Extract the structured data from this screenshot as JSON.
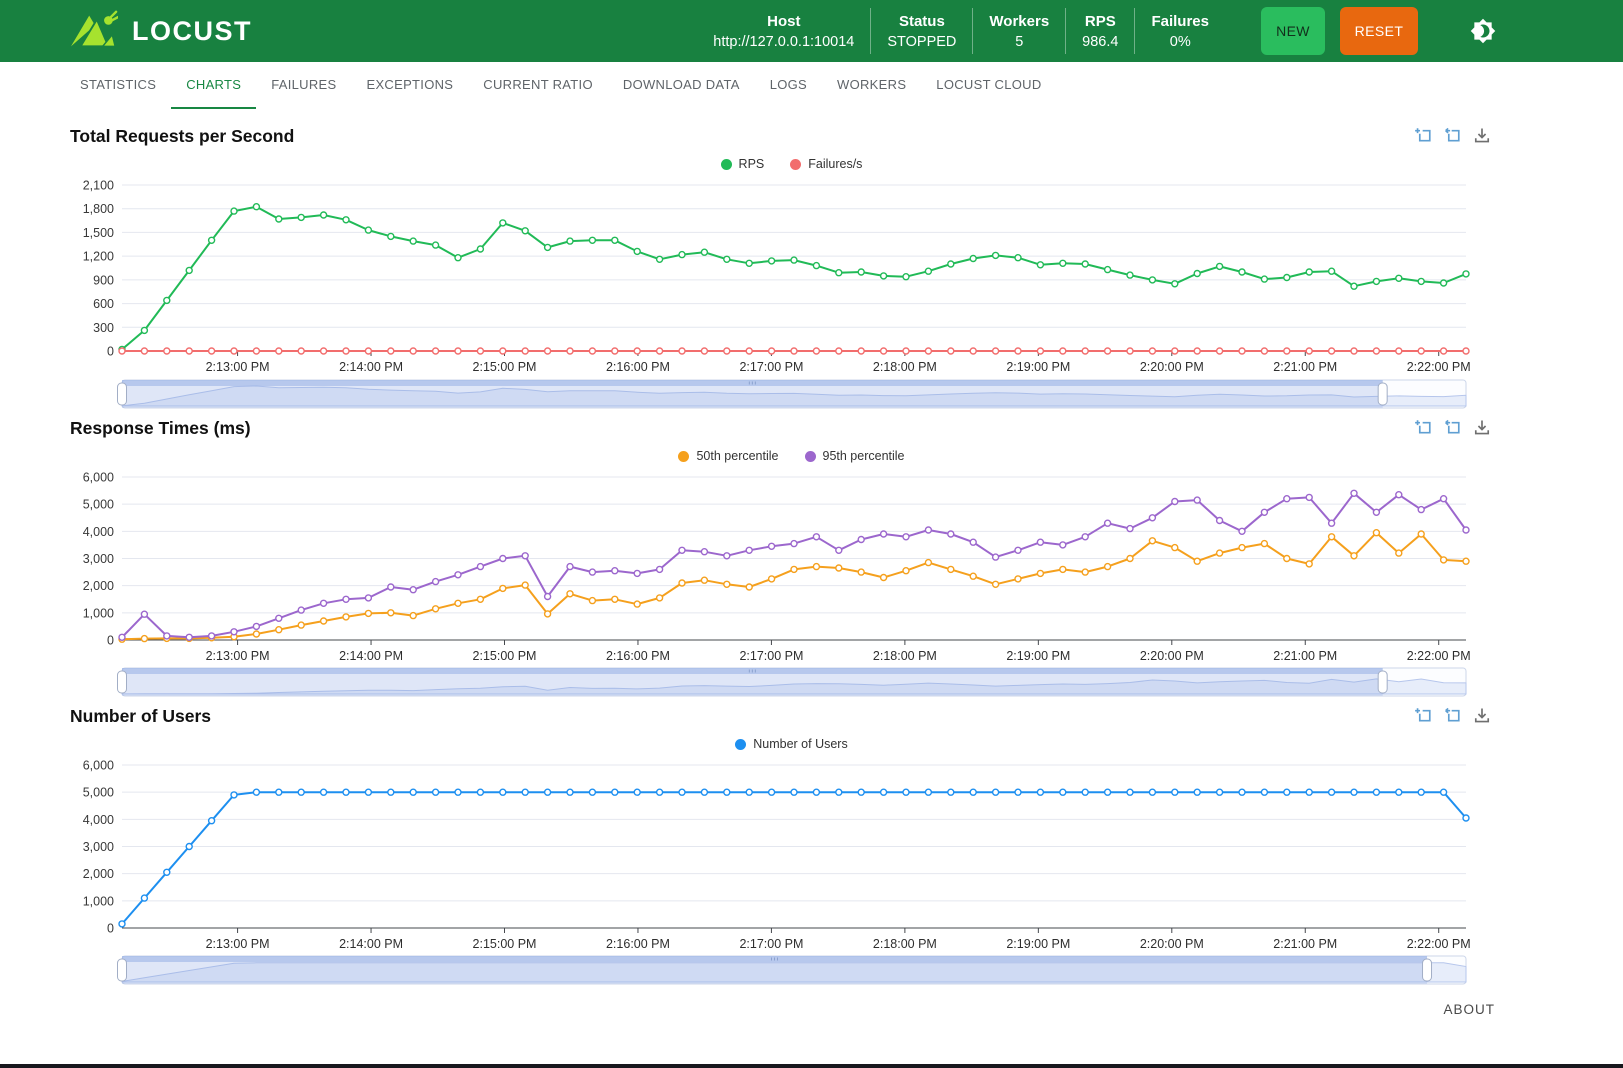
{
  "header": {
    "brand": "LOCUST",
    "stats": [
      {
        "label": "Host",
        "value": "http://127.0.0.1:10014"
      },
      {
        "label": "Status",
        "value": "STOPPED"
      },
      {
        "label": "Workers",
        "value": "5"
      },
      {
        "label": "RPS",
        "value": "986.4"
      },
      {
        "label": "Failures",
        "value": "0%"
      }
    ],
    "new_button": "NEW",
    "reset_button": "RESET",
    "theme_toggle_icon": "dark-light-mode-toggle"
  },
  "tabs": [
    {
      "label": "STATISTICS",
      "active": false
    },
    {
      "label": "CHARTS",
      "active": true
    },
    {
      "label": "FAILURES",
      "active": false
    },
    {
      "label": "EXCEPTIONS",
      "active": false
    },
    {
      "label": "CURRENT RATIO",
      "active": false
    },
    {
      "label": "DOWNLOAD DATA",
      "active": false
    },
    {
      "label": "LOGS",
      "active": false
    },
    {
      "label": "WORKERS",
      "active": false
    },
    {
      "label": "LOCUST CLOUD",
      "active": false
    }
  ],
  "toolbox_icons": [
    "zoom-select",
    "zoom-reset",
    "download"
  ],
  "footer": {
    "about_label": "ABOUT"
  },
  "colors": {
    "header_green": "#188140",
    "logo_lime": "#a6e22e",
    "new_button_green": "#2abd5e",
    "reset_button_orange": "#e8680f",
    "active_tab_green": "#188743",
    "rps_green": "#21ba57",
    "failures_red": "#f26d6d",
    "p50_orange": "#f5a01d",
    "p95_purple": "#9c67cd",
    "users_blue": "#1d8ff0"
  },
  "chart_data": [
    {
      "type": "line",
      "title": "Total Requests per Second",
      "ylim": [
        0,
        2100
      ],
      "y_ticks": [
        0,
        300,
        600,
        900,
        1200,
        1500,
        1800,
        2100
      ],
      "x_labels": [
        "2:13:00 PM",
        "2:14:00 PM",
        "2:15:00 PM",
        "2:16:00 PM",
        "2:17:00 PM",
        "2:18:00 PM",
        "2:19:00 PM",
        "2:20:00 PM",
        "2:21:00 PM",
        "2:22:00 PM"
      ],
      "x_first_frac": 0.086,
      "x_step_frac": 0.0993,
      "zoom_end_frac": 0.938,
      "grid": true,
      "legend_position": "top-center",
      "series": [
        {
          "name": "RPS",
          "color": "#21ba57",
          "values": [
            20,
            260,
            640,
            1020,
            1400,
            1770,
            1825,
            1670,
            1690,
            1720,
            1660,
            1530,
            1450,
            1390,
            1340,
            1180,
            1290,
            1620,
            1520,
            1310,
            1390,
            1400,
            1400,
            1260,
            1160,
            1220,
            1250,
            1160,
            1110,
            1140,
            1150,
            1080,
            990,
            1000,
            950,
            940,
            1010,
            1100,
            1170,
            1210,
            1180,
            1090,
            1110,
            1100,
            1030,
            960,
            900,
            850,
            980,
            1070,
            1000,
            910,
            930,
            1000,
            1010,
            820,
            880,
            920,
            880,
            860,
            975
          ]
        },
        {
          "name": "Failures/s",
          "color": "#f26d6d",
          "values": [
            0,
            0,
            0,
            0,
            0,
            0,
            0,
            0,
            0,
            0,
            0,
            0,
            0,
            0,
            0,
            0,
            0,
            0,
            0,
            0,
            0,
            0,
            0,
            0,
            0,
            0,
            0,
            0,
            0,
            0,
            0,
            0,
            0,
            0,
            0,
            0,
            0,
            0,
            0,
            0,
            0,
            0,
            0,
            0,
            0,
            0,
            0,
            0,
            0,
            0,
            0,
            0,
            0,
            0,
            0,
            0,
            0,
            0,
            0,
            0,
            0
          ]
        }
      ]
    },
    {
      "type": "line",
      "title": "Response Times (ms)",
      "ylim": [
        0,
        6000
      ],
      "y_ticks": [
        0,
        1000,
        2000,
        3000,
        4000,
        5000,
        6000
      ],
      "x_labels": [
        "2:13:00 PM",
        "2:14:00 PM",
        "2:15:00 PM",
        "2:16:00 PM",
        "2:17:00 PM",
        "2:18:00 PM",
        "2:19:00 PM",
        "2:20:00 PM",
        "2:21:00 PM",
        "2:22:00 PM"
      ],
      "x_first_frac": 0.086,
      "x_step_frac": 0.0993,
      "zoom_end_frac": 0.938,
      "grid": true,
      "legend_position": "top-center",
      "series": [
        {
          "name": "50th percentile",
          "color": "#f5a01d",
          "values": [
            30,
            50,
            60,
            60,
            80,
            120,
            220,
            380,
            550,
            700,
            850,
            980,
            1000,
            900,
            1150,
            1350,
            1500,
            1900,
            2020,
            960,
            1700,
            1450,
            1500,
            1320,
            1550,
            2100,
            2200,
            2050,
            1950,
            2250,
            2600,
            2700,
            2650,
            2500,
            2300,
            2550,
            2850,
            2600,
            2350,
            2050,
            2250,
            2450,
            2600,
            2500,
            2700,
            3000,
            3650,
            3400,
            2900,
            3200,
            3400,
            3550,
            3000,
            2800,
            3800,
            3100,
            3950,
            3200,
            3900,
            2950,
            2900
          ]
        },
        {
          "name": "95th percentile",
          "color": "#9c67cd",
          "values": [
            100,
            950,
            150,
            100,
            150,
            300,
            500,
            800,
            1100,
            1350,
            1500,
            1550,
            1950,
            1850,
            2150,
            2400,
            2700,
            3000,
            3100,
            1600,
            2700,
            2500,
            2550,
            2450,
            2600,
            3300,
            3250,
            3100,
            3300,
            3450,
            3550,
            3800,
            3300,
            3700,
            3900,
            3800,
            4050,
            3900,
            3600,
            3050,
            3300,
            3600,
            3500,
            3800,
            4300,
            4100,
            4500,
            5100,
            5150,
            4400,
            4000,
            4700,
            5200,
            5250,
            4300,
            5400,
            4700,
            5350,
            4800,
            5200,
            4050
          ]
        }
      ]
    },
    {
      "type": "line",
      "title": "Number of Users",
      "ylim": [
        0,
        6000
      ],
      "y_ticks": [
        0,
        1000,
        2000,
        3000,
        4000,
        5000,
        6000
      ],
      "x_labels": [
        "2:13:00 PM",
        "2:14:00 PM",
        "2:15:00 PM",
        "2:16:00 PM",
        "2:17:00 PM",
        "2:18:00 PM",
        "2:19:00 PM",
        "2:20:00 PM",
        "2:21:00 PM",
        "2:22:00 PM"
      ],
      "x_first_frac": 0.086,
      "x_step_frac": 0.0993,
      "zoom_end_frac": 0.971,
      "grid": true,
      "legend_position": "top-center",
      "series": [
        {
          "name": "Number of Users",
          "color": "#1d8ff0",
          "values": [
            150,
            1100,
            2050,
            3000,
            3950,
            4900,
            5000,
            5000,
            5000,
            5000,
            5000,
            5000,
            5000,
            5000,
            5000,
            5000,
            5000,
            5000,
            5000,
            5000,
            5000,
            5000,
            5000,
            5000,
            5000,
            5000,
            5000,
            5000,
            5000,
            5000,
            5000,
            5000,
            5000,
            5000,
            5000,
            5000,
            5000,
            5000,
            5000,
            5000,
            5000,
            5000,
            5000,
            5000,
            5000,
            5000,
            5000,
            5000,
            5000,
            5000,
            5000,
            5000,
            5000,
            5000,
            5000,
            5000,
            5000,
            5000,
            5000,
            5000,
            4050
          ]
        }
      ]
    }
  ]
}
